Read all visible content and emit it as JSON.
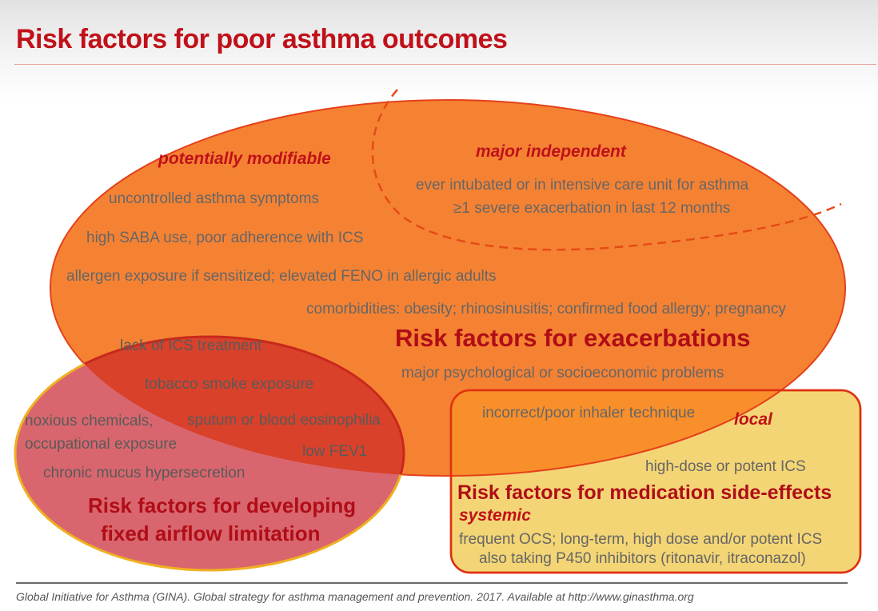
{
  "title": "Risk factors for poor asthma outcomes",
  "exacerbations": {
    "heading": "Risk factors for exacerbations",
    "modifiable": {
      "label": "potentially modifiable",
      "items": [
        "uncontrolled asthma symptoms",
        "high SABA use, poor adherence  with ICS",
        "allergen exposure if sensitized; elevated FENO in allergic adults",
        "comorbidities: obesity; rhinosinusitis; confirmed food allergy; pregnancy",
        "major psychological or socioeconomic problems"
      ]
    },
    "major_independent": {
      "label": "major independent",
      "items": [
        "ever intubated or in intensive care unit for asthma",
        "≥1 severe exacerbation in last 12 months"
      ]
    }
  },
  "overlap": {
    "items": [
      "lack of ICS treatment",
      "tobacco smoke exposure",
      "sputum or blood eosinophilia",
      "low FEV1"
    ]
  },
  "fixed_airflow": {
    "heading_line1": "Risk factors  for developing",
    "heading_line2": "fixed airflow limitation",
    "items": [
      "noxious chemicals,",
      "occupational exposure",
      "chronic mucus hypersecretion"
    ]
  },
  "side_effects": {
    "heading": "Risk factors for medication side-effects",
    "shared_item": "incorrect/poor inhaler technique",
    "local": {
      "label": "local",
      "items": [
        "high-dose or potent ICS"
      ]
    },
    "systemic": {
      "label": "systemic",
      "items": [
        "frequent OCS; long-term, high dose and/or potent ICS",
        "also taking P450 inhibitors (ritonavir, itraconazol)"
      ]
    }
  },
  "footer": "Global Initiative for Asthma (GINA). Global strategy for asthma management and prevention. 2017. Available at http://www.ginasthma.org",
  "colors": {
    "title_red": "#c0111a",
    "exacerbation_orange": "#f58233",
    "fixed_airflow_pink": "#d9666e",
    "overlap_red": "#d9412a",
    "side_effects_yellow": "#f3d575",
    "outline_red": "#e03010"
  }
}
